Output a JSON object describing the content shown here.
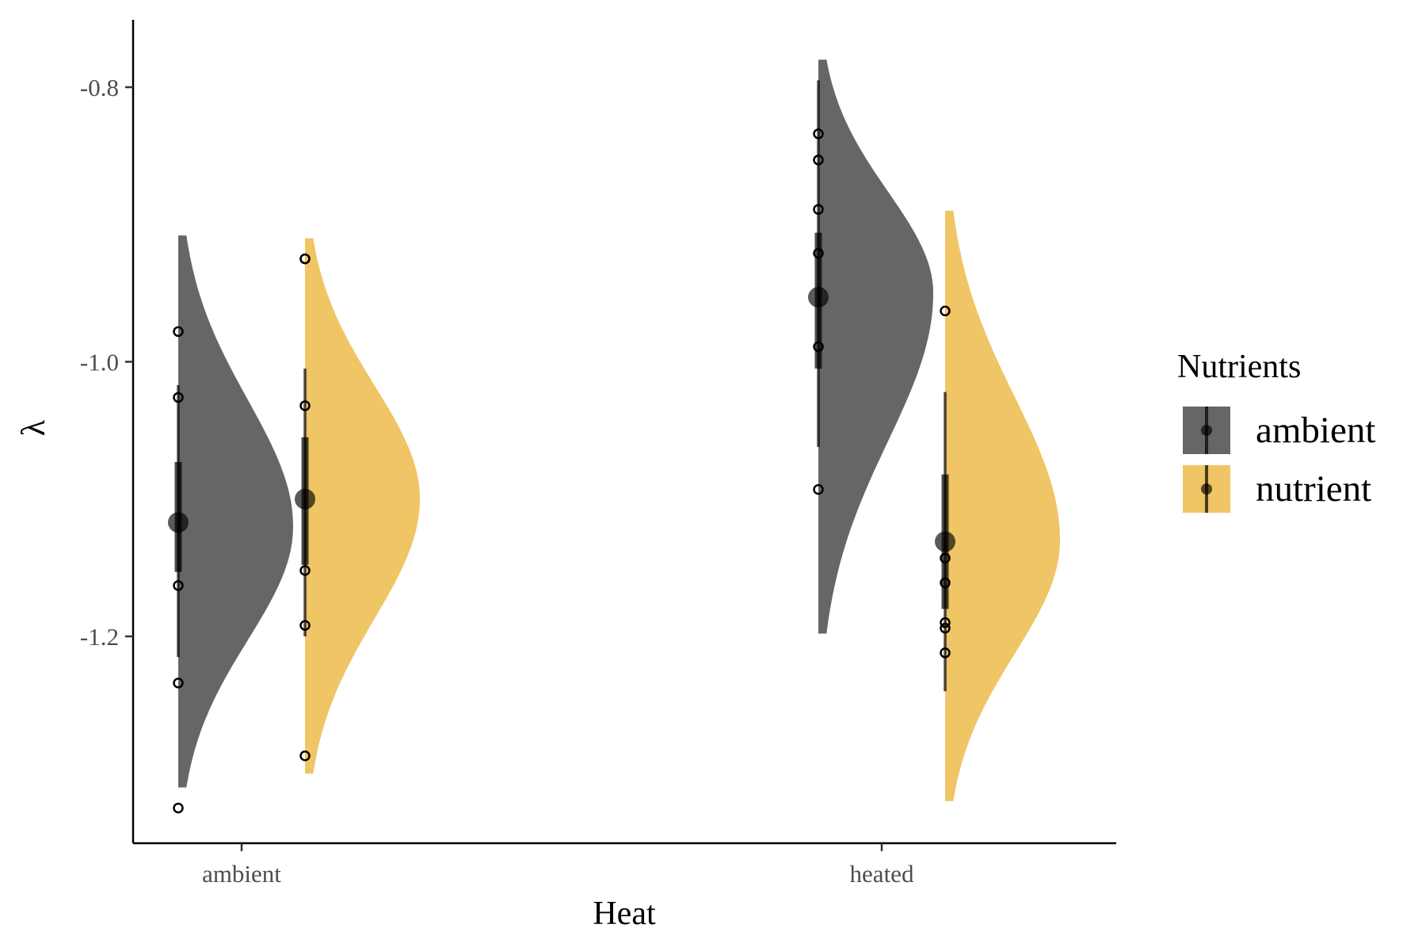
{
  "chart_data": {
    "type": "halfeye",
    "xlabel": "Heat",
    "ylabel": "λ",
    "categories": [
      "ambient",
      "heated"
    ],
    "ylim": [
      -1.35,
      -0.755
    ],
    "yticks": [
      -0.8,
      -1.0,
      -1.2
    ],
    "ytick_labels": [
      "-0.8",
      "-1.0",
      "-1.2"
    ],
    "grid": false,
    "legend": {
      "title": "Nutrients",
      "position": "right",
      "entries": [
        {
          "name": "ambient",
          "color": "#666666"
        },
        {
          "name": "nutrient",
          "color": "#f0c566"
        }
      ]
    },
    "series": [
      {
        "name": "ambient",
        "color": "#666666",
        "groups": [
          {
            "category": "ambient",
            "median": -1.117,
            "interval_66": [
              -1.073,
              -1.153
            ],
            "interval_95": [
              -1.017,
              -1.215
            ],
            "density_range": [
              -1.31,
              -0.908
            ],
            "density_peak": -1.12,
            "points": [
              -0.978,
              -1.026,
              -1.163,
              -1.234,
              -1.325
            ]
          },
          {
            "category": "heated",
            "median": -0.953,
            "interval_66": [
              -0.906,
              -1.005
            ],
            "interval_95": [
              -0.795,
              -1.062
            ],
            "density_range": [
              -1.198,
              -0.78
            ],
            "density_peak": -0.95,
            "points": [
              -0.834,
              -0.853,
              -0.889,
              -0.921,
              -0.989,
              -1.093
            ]
          }
        ]
      },
      {
        "name": "nutrient",
        "color": "#f0c566",
        "groups": [
          {
            "category": "ambient",
            "median": -1.1,
            "interval_66": [
              -1.055,
              -1.148
            ],
            "interval_95": [
              -1.005,
              -1.2
            ],
            "density_range": [
              -1.3,
              -0.91
            ],
            "density_peak": -1.1,
            "points": [
              -0.925,
              -0.925,
              -1.032,
              -1.152,
              -1.192,
              -1.287
            ]
          },
          {
            "category": "heated",
            "median": -1.131,
            "interval_66": [
              -1.082,
              -1.18
            ],
            "interval_95": [
              -1.022,
              -1.24
            ],
            "density_range": [
              -1.32,
              -0.89
            ],
            "density_peak": -1.13,
            "points": [
              -0.963,
              -1.143,
              -1.161,
              -1.19,
              -1.194,
              -1.212
            ]
          }
        ]
      }
    ]
  }
}
